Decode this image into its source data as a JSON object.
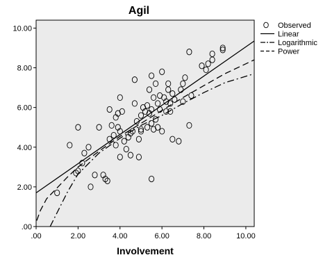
{
  "chart_data": {
    "type": "scatter",
    "title": "Agil",
    "xlabel": "Involvement",
    "ylabel": "",
    "xlim": [
      0,
      10.4
    ],
    "ylim": [
      0,
      10.4
    ],
    "xticks": [
      0,
      2,
      4,
      6,
      8,
      10
    ],
    "yticks": [
      0,
      2,
      4,
      6,
      8,
      10
    ],
    "xtick_labels": [
      ".00",
      "2.00",
      "4.00",
      "6.00",
      "8.00",
      "10.00"
    ],
    "ytick_labels": [
      ".00",
      "2.00",
      "4.00",
      "6.00",
      "8.00",
      "10.00"
    ],
    "grid": false,
    "background": "#ebebeb",
    "legend_position": "outside-right-top",
    "legend": [
      {
        "label": "Observed",
        "style": "circle"
      },
      {
        "label": "Linear",
        "style": "solid"
      },
      {
        "label": "Logarithmic",
        "style": "dashdot"
      },
      {
        "label": "Power",
        "style": "dashed"
      }
    ],
    "observed": [
      [
        1.0,
        1.7
      ],
      [
        1.6,
        4.1
      ],
      [
        1.9,
        2.7
      ],
      [
        2.0,
        2.8
      ],
      [
        2.0,
        5.0
      ],
      [
        2.2,
        3.2
      ],
      [
        2.3,
        3.7
      ],
      [
        2.5,
        4.0
      ],
      [
        2.6,
        2.0
      ],
      [
        2.8,
        2.6
      ],
      [
        3.0,
        5.0
      ],
      [
        3.2,
        2.6
      ],
      [
        3.3,
        2.4
      ],
      [
        3.4,
        2.3
      ],
      [
        3.5,
        4.4
      ],
      [
        3.5,
        5.9
      ],
      [
        3.6,
        5.1
      ],
      [
        3.7,
        4.6
      ],
      [
        3.8,
        4.1
      ],
      [
        3.8,
        5.5
      ],
      [
        3.9,
        5.7
      ],
      [
        3.9,
        5.0
      ],
      [
        4.0,
        3.5
      ],
      [
        4.0,
        4.8
      ],
      [
        4.0,
        6.5
      ],
      [
        4.1,
        5.8
      ],
      [
        4.2,
        4.3
      ],
      [
        4.3,
        3.9
      ],
      [
        4.4,
        4.5
      ],
      [
        4.5,
        3.6
      ],
      [
        4.5,
        4.7
      ],
      [
        4.6,
        4.8
      ],
      [
        4.7,
        6.2
      ],
      [
        4.7,
        7.4
      ],
      [
        4.8,
        5.3
      ],
      [
        4.9,
        3.5
      ],
      [
        4.9,
        4.4
      ],
      [
        5.0,
        4.8
      ],
      [
        5.0,
        5.6
      ],
      [
        5.0,
        4.9
      ],
      [
        5.1,
        6.0
      ],
      [
        5.2,
        5.8
      ],
      [
        5.3,
        6.1
      ],
      [
        5.3,
        5.0
      ],
      [
        5.4,
        6.9
      ],
      [
        5.4,
        5.7
      ],
      [
        5.5,
        5.9
      ],
      [
        5.5,
        2.4
      ],
      [
        5.5,
        7.6
      ],
      [
        5.5,
        5.2
      ],
      [
        5.6,
        6.5
      ],
      [
        5.6,
        4.9
      ],
      [
        5.7,
        5.4
      ],
      [
        5.7,
        7.2
      ],
      [
        5.8,
        6.2
      ],
      [
        5.8,
        5.0
      ],
      [
        5.9,
        6.6
      ],
      [
        5.9,
        5.9
      ],
      [
        6.0,
        4.8
      ],
      [
        6.0,
        7.8
      ],
      [
        6.1,
        6.5
      ],
      [
        6.2,
        5.8
      ],
      [
        6.2,
        6.3
      ],
      [
        6.3,
        6.9
      ],
      [
        6.3,
        7.2
      ],
      [
        6.4,
        5.8
      ],
      [
        6.4,
        6.2
      ],
      [
        6.5,
        4.4
      ],
      [
        6.5,
        6.7
      ],
      [
        6.6,
        6.4
      ],
      [
        6.8,
        4.3
      ],
      [
        6.9,
        6.9
      ],
      [
        7.0,
        7.2
      ],
      [
        7.0,
        6.3
      ],
      [
        7.1,
        7.5
      ],
      [
        7.3,
        8.8
      ],
      [
        7.3,
        5.1
      ],
      [
        7.4,
        6.6
      ],
      [
        7.9,
        8.1
      ],
      [
        8.1,
        7.9
      ],
      [
        8.2,
        8.2
      ],
      [
        8.4,
        8.4
      ],
      [
        8.4,
        8.7
      ],
      [
        8.9,
        8.9
      ],
      [
        8.9,
        9.0
      ]
    ],
    "linear_fit": [
      [
        0,
        1.7
      ],
      [
        10.4,
        9.35
      ]
    ],
    "logarithmic_fit": [
      [
        0.67,
        0
      ],
      [
        1.0,
        0.7
      ],
      [
        1.5,
        1.75
      ],
      [
        2.0,
        2.65
      ],
      [
        3.0,
        3.7
      ],
      [
        4.0,
        4.45
      ],
      [
        5.0,
        5.1
      ],
      [
        6.0,
        5.6
      ],
      [
        7.0,
        6.2
      ],
      [
        8.0,
        6.75
      ],
      [
        9.0,
        7.25
      ],
      [
        10.4,
        7.7
      ]
    ],
    "power_fit": [
      [
        0.03,
        0.3
      ],
      [
        0.2,
        0.8
      ],
      [
        0.5,
        1.4
      ],
      [
        1.0,
        1.95
      ],
      [
        1.5,
        2.5
      ],
      [
        2.0,
        3.0
      ],
      [
        3.0,
        3.8
      ],
      [
        4.0,
        4.55
      ],
      [
        5.0,
        5.2
      ],
      [
        6.0,
        5.85
      ],
      [
        7.0,
        6.5
      ],
      [
        8.0,
        7.1
      ],
      [
        9.0,
        7.7
      ],
      [
        10.4,
        8.4
      ]
    ]
  }
}
